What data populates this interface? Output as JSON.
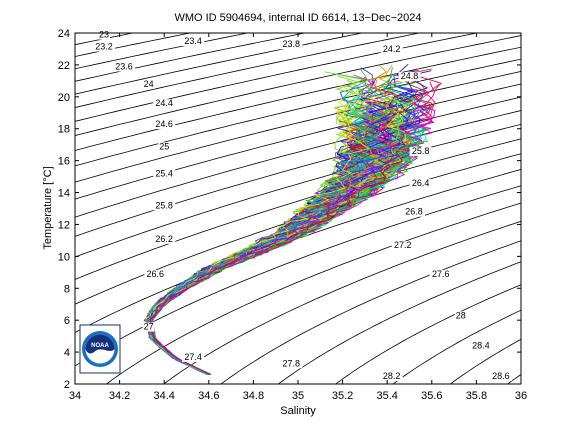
{
  "chart_data": {
    "type": "line",
    "title": "WMO ID 5904694, internal ID 6614, 13−Dec−2024",
    "xlabel": "Salinity",
    "ylabel": "Temperature [°C]",
    "xlim": [
      34,
      36
    ],
    "ylim": [
      2,
      24
    ],
    "grid": false,
    "x_ticks": [
      "34",
      "34.2",
      "34.4",
      "34.6",
      "34.8",
      "35",
      "35.2",
      "35.4",
      "35.6",
      "35.8",
      "36"
    ],
    "y_ticks": [
      "2",
      "4",
      "6",
      "8",
      "10",
      "12",
      "14",
      "16",
      "18",
      "20",
      "22",
      "24"
    ],
    "isopycnal_labels": [
      {
        "text": "23",
        "s": 34.13,
        "t": 23.9
      },
      {
        "text": "23.2",
        "s": 34.13,
        "t": 23.15
      },
      {
        "text": "23.4",
        "s": 34.53,
        "t": 23.5
      },
      {
        "text": "23.6",
        "s": 34.22,
        "t": 21.9
      },
      {
        "text": "23.8",
        "s": 34.97,
        "t": 23.3
      },
      {
        "text": "24",
        "s": 34.33,
        "t": 20.8
      },
      {
        "text": "24.2",
        "s": 35.42,
        "t": 23.0
      },
      {
        "text": "24.4",
        "s": 34.4,
        "t": 19.6
      },
      {
        "text": "24.6",
        "s": 34.4,
        "t": 18.3
      },
      {
        "text": "24.8",
        "s": 35.5,
        "t": 21.3
      },
      {
        "text": "25",
        "s": 34.4,
        "t": 16.9
      },
      {
        "text": "25.4",
        "s": 34.4,
        "t": 15.2
      },
      {
        "text": "25.8",
        "s": 35.55,
        "t": 16.6
      },
      {
        "text": "26.4",
        "s": 35.55,
        "t": 14.6
      },
      {
        "text": "25.8",
        "s": 34.4,
        "t": 13.2
      },
      {
        "text": "26.8",
        "s": 35.52,
        "t": 12.8
      },
      {
        "text": "26.2",
        "s": 34.4,
        "t": 11.1
      },
      {
        "text": "27.2",
        "s": 35.47,
        "t": 10.7
      },
      {
        "text": "26.6",
        "s": 34.36,
        "t": 8.9
      },
      {
        "text": "27.6",
        "s": 35.64,
        "t": 8.9
      },
      {
        "text": "27",
        "s": 34.33,
        "t": 5.6
      },
      {
        "text": "28",
        "s": 35.73,
        "t": 6.3
      },
      {
        "text": "27.4",
        "s": 34.53,
        "t": 3.7
      },
      {
        "text": "28.4",
        "s": 35.82,
        "t": 4.4
      },
      {
        "text": "27.8",
        "s": 34.97,
        "t": 3.3
      },
      {
        "text": "28.2",
        "s": 35.42,
        "t": 2.5
      },
      {
        "text": "28.6",
        "s": 35.91,
        "t": 2.5
      }
    ],
    "profiles": {
      "count": 150,
      "spine": [
        {
          "s": 34.6,
          "t": 2.6
        },
        {
          "s": 34.45,
          "t": 3.6
        },
        {
          "s": 34.35,
          "t": 4.8
        },
        {
          "s": 34.33,
          "t": 6.0
        },
        {
          "s": 34.38,
          "t": 7.0
        },
        {
          "s": 34.5,
          "t": 8.2
        },
        {
          "s": 34.62,
          "t": 9.2
        },
        {
          "s": 34.8,
          "t": 10.3
        },
        {
          "s": 34.98,
          "t": 11.5
        },
        {
          "s": 35.1,
          "t": 12.8
        },
        {
          "s": 35.22,
          "t": 14.0
        },
        {
          "s": 35.33,
          "t": 15.5
        },
        {
          "s": 35.38,
          "t": 17.3
        },
        {
          "s": 35.4,
          "t": 19.5
        },
        {
          "s": 35.4,
          "t": 22.0
        }
      ]
    },
    "logo": {
      "name": "noaa-logo",
      "text": "NOAA"
    }
  }
}
